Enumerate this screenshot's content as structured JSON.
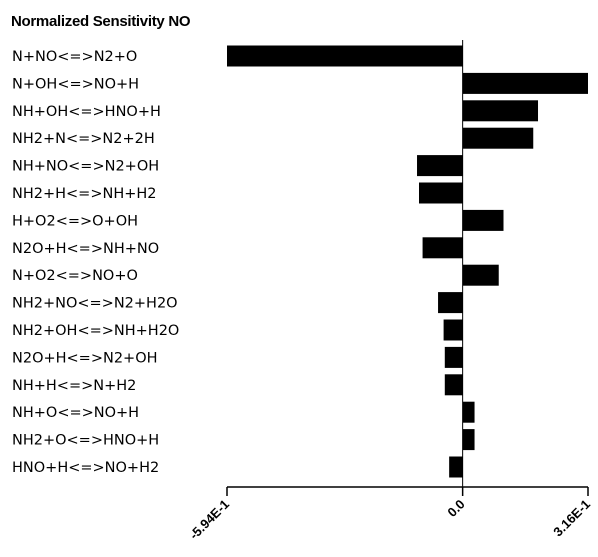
{
  "chart_data": {
    "type": "bar",
    "orientation": "horizontal",
    "title": "Normalized Sensitivity NO",
    "xlabel": "",
    "ylabel": "",
    "xlim": [
      -0.594,
      0.316
    ],
    "x_tick_labels": [
      "-5.94E-1",
      "0.0",
      "3.16E-1"
    ],
    "x_tick_values": [
      -0.594,
      0.0,
      0.316
    ],
    "bar_color": "#000000",
    "categories": [
      "N+NO<=>N2+O",
      "N+OH<=>NO+H",
      "NH+OH<=>HNO+H",
      "NH2+N<=>N2+2H",
      "NH+NO<=>N2+OH",
      "NH2+H<=>NH+H2",
      "H+O2<=>O+OH",
      "N2O+H<=>NH+NO",
      "N+O2<=>NO+O",
      "NH2+NO<=>N2+H2O",
      "NH2+OH<=>NH+H2O",
      "N2O+H<=>N2+OH",
      "NH+H<=>N+H2",
      "NH+O<=>NO+H",
      "NH2+O<=>HNO+H",
      "HNO+H<=>NO+H2"
    ],
    "values": [
      -0.594,
      0.316,
      0.19,
      0.178,
      -0.115,
      -0.11,
      0.103,
      -0.101,
      0.091,
      -0.062,
      -0.048,
      -0.045,
      -0.045,
      0.03,
      0.03,
      -0.034
    ]
  }
}
